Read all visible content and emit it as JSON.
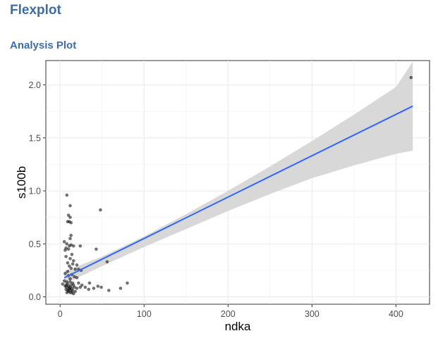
{
  "app": {
    "title": "Flexplot",
    "section_title": "Analysis Plot"
  },
  "colors": {
    "heading": "#3e6ca6",
    "line": "#3366ff",
    "ribbon": "#d6d6d6",
    "points": "#000000"
  },
  "chart_data": {
    "type": "scatter",
    "title": "",
    "xlabel": "ndka",
    "ylabel": "s100b",
    "xlim": [
      -17,
      440
    ],
    "ylim": [
      -0.07,
      2.23
    ],
    "x_ticks": [
      0,
      100,
      200,
      300,
      400
    ],
    "y_ticks": [
      0.0,
      0.5,
      1.0,
      1.5,
      2.0
    ],
    "x_tick_labels": [
      "0",
      "100",
      "200",
      "300",
      "400"
    ],
    "y_tick_labels": [
      "0.0",
      "0.5",
      "1.0",
      "1.5",
      "2.0"
    ],
    "grid": true,
    "points": [
      [
        8,
        0.96
      ],
      [
        12,
        0.86
      ],
      [
        10,
        0.77
      ],
      [
        12,
        0.75
      ],
      [
        9,
        0.71
      ],
      [
        11,
        0.71
      ],
      [
        13,
        0.7
      ],
      [
        48,
        0.82
      ],
      [
        13,
        0.58
      ],
      [
        12,
        0.55
      ],
      [
        5,
        0.52
      ],
      [
        8,
        0.5
      ],
      [
        13,
        0.49
      ],
      [
        11,
        0.48
      ],
      [
        16,
        0.48
      ],
      [
        7,
        0.46
      ],
      [
        10,
        0.45
      ],
      [
        24,
        0.48
      ],
      [
        43,
        0.45
      ],
      [
        6,
        0.44
      ],
      [
        14,
        0.4
      ],
      [
        7,
        0.38
      ],
      [
        12,
        0.36
      ],
      [
        16,
        0.34
      ],
      [
        9,
        0.32
      ],
      [
        15,
        0.31
      ],
      [
        20,
        0.3
      ],
      [
        56,
        0.33
      ],
      [
        11,
        0.29
      ],
      [
        13,
        0.27
      ],
      [
        18,
        0.26
      ],
      [
        22,
        0.26
      ],
      [
        9,
        0.24
      ],
      [
        25,
        0.25
      ],
      [
        6,
        0.22
      ],
      [
        14,
        0.21
      ],
      [
        10,
        0.2
      ],
      [
        17,
        0.19
      ],
      [
        20,
        0.18
      ],
      [
        12,
        0.17
      ],
      [
        5,
        0.15
      ],
      [
        8,
        0.14
      ],
      [
        12,
        0.14
      ],
      [
        15,
        0.13
      ],
      [
        22,
        0.13
      ],
      [
        35,
        0.13
      ],
      [
        3,
        0.12
      ],
      [
        7,
        0.11
      ],
      [
        9,
        0.12
      ],
      [
        13,
        0.11
      ],
      [
        16,
        0.11
      ],
      [
        26,
        0.11
      ],
      [
        6,
        0.1
      ],
      [
        8,
        0.09
      ],
      [
        10,
        0.1
      ],
      [
        11,
        0.08
      ],
      [
        12,
        0.09
      ],
      [
        14,
        0.08
      ],
      [
        17,
        0.09
      ],
      [
        20,
        0.08
      ],
      [
        24,
        0.09
      ],
      [
        30,
        0.09
      ],
      [
        45,
        0.1
      ],
      [
        49,
        0.09
      ],
      [
        7,
        0.07
      ],
      [
        9,
        0.06
      ],
      [
        11,
        0.07
      ],
      [
        13,
        0.06
      ],
      [
        15,
        0.06
      ],
      [
        18,
        0.05
      ],
      [
        10,
        0.05
      ],
      [
        12,
        0.04
      ],
      [
        14,
        0.04
      ],
      [
        16,
        0.03
      ],
      [
        8,
        0.04
      ],
      [
        34,
        0.07
      ],
      [
        40,
        0.08
      ],
      [
        58,
        0.06
      ],
      [
        72,
        0.08
      ],
      [
        80,
        0.13
      ],
      [
        418,
        2.07
      ]
    ],
    "fit_line": {
      "x": [
        5,
        420
      ],
      "y": [
        0.18,
        1.8
      ]
    },
    "confidence_band": {
      "x": [
        5,
        50,
        100,
        150,
        200,
        250,
        300,
        350,
        400,
        420
      ],
      "lower": [
        0.12,
        0.29,
        0.47,
        0.64,
        0.81,
        0.97,
        1.12,
        1.24,
        1.35,
        1.38
      ],
      "upper": [
        0.24,
        0.38,
        0.57,
        0.78,
        1.0,
        1.23,
        1.47,
        1.72,
        1.98,
        2.22
      ]
    }
  }
}
